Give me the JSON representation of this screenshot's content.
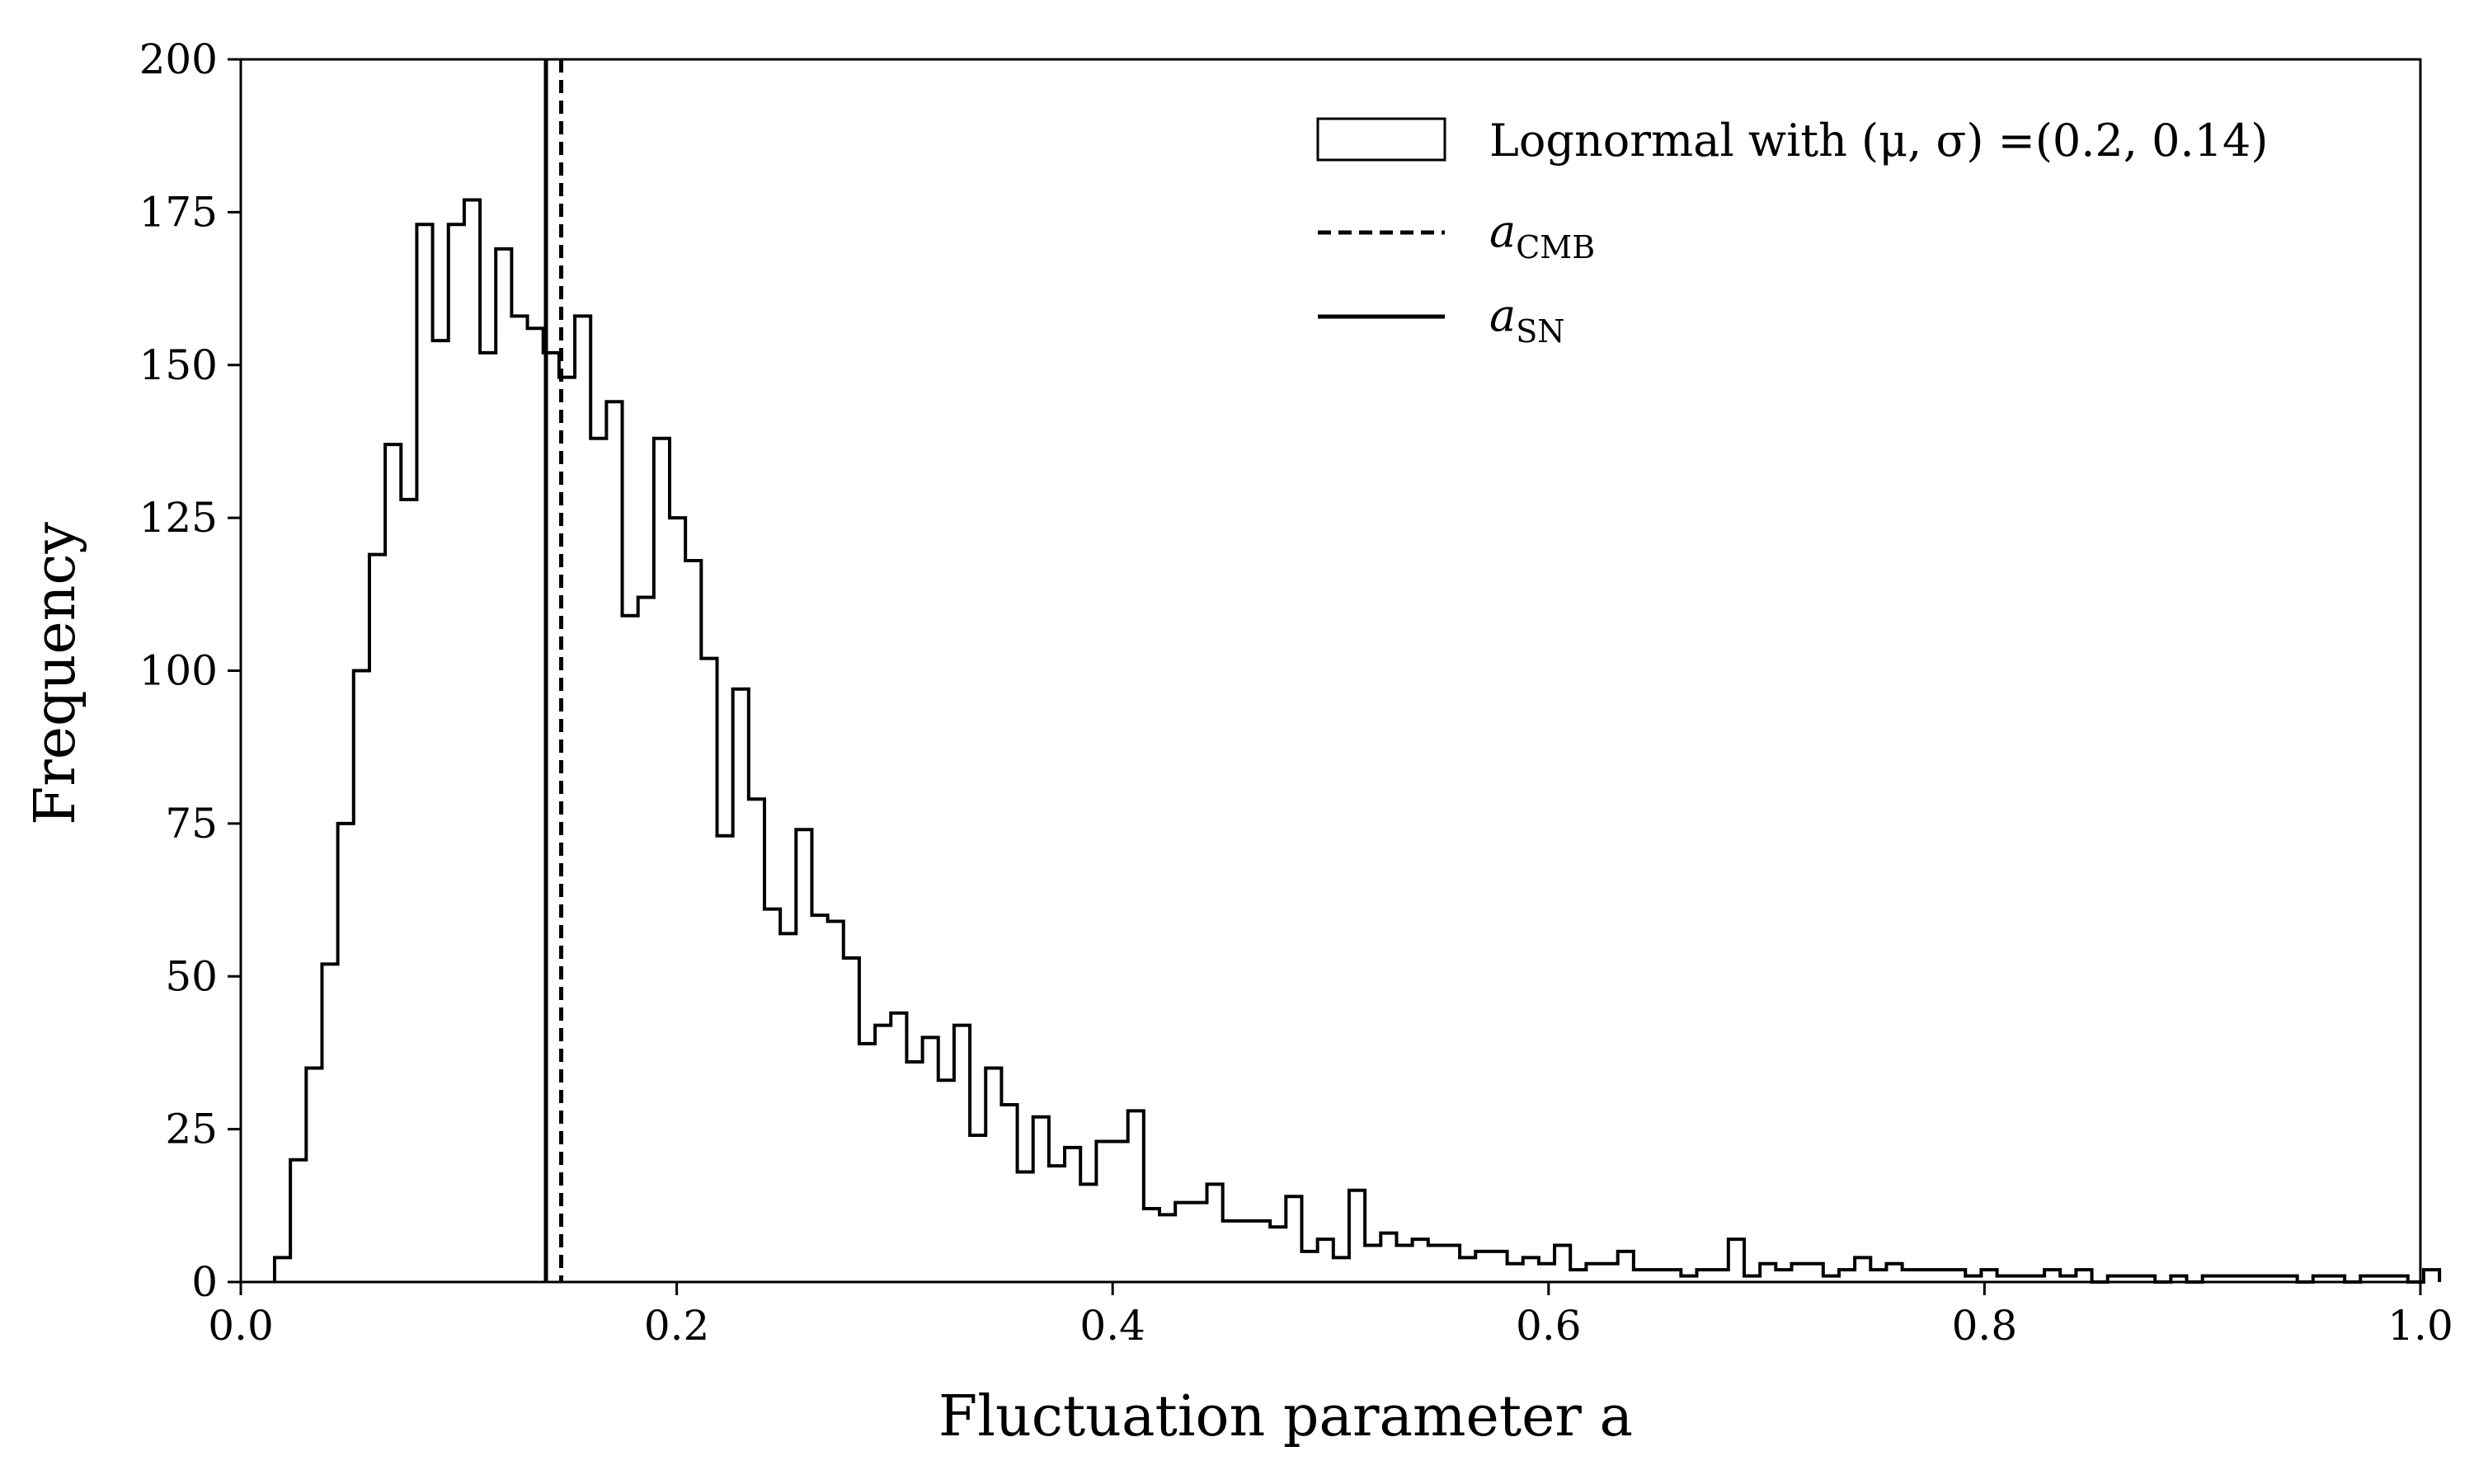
{
  "chart_data": {
    "type": "histogram",
    "title": "",
    "xlabel": "Fluctuation parameter a",
    "ylabel": "Frequency",
    "xlim": [
      0.0,
      1.0
    ],
    "ylim": [
      0,
      200
    ],
    "x_ticks": [
      "0.0",
      "0.2",
      "0.4",
      "0.6",
      "0.8",
      "1.0"
    ],
    "y_ticks": [
      "0",
      "25",
      "50",
      "75",
      "100",
      "125",
      "150",
      "175",
      "200"
    ],
    "grid": false,
    "legend_position": "top-right",
    "bin_start": 0.0155,
    "bin_width": 0.00725,
    "counts": [
      4,
      20,
      35,
      52,
      75,
      100,
      119,
      137,
      128,
      173,
      154,
      173,
      177,
      152,
      169,
      158,
      156,
      152,
      148,
      158,
      138,
      144,
      109,
      112,
      138,
      125,
      118,
      102,
      73,
      97,
      79,
      61,
      57,
      74,
      60,
      59,
      53,
      39,
      42,
      44,
      36,
      40,
      33,
      42,
      24,
      35,
      29,
      18,
      27,
      19,
      22,
      16,
      23,
      23,
      28,
      12,
      11,
      13,
      13,
      16,
      10,
      10,
      10,
      9,
      14,
      5,
      7,
      4,
      15,
      6,
      8,
      6,
      7,
      6,
      6,
      4,
      5,
      5,
      3,
      4,
      3,
      6,
      2,
      3,
      3,
      5,
      2,
      2,
      2,
      1,
      2,
      2,
      7,
      1,
      3,
      2,
      3,
      3,
      1,
      2,
      4,
      2,
      3,
      2,
      2,
      2,
      2,
      1,
      2,
      1,
      1,
      1,
      2,
      1,
      2,
      0,
      1,
      1,
      1,
      0,
      1,
      0,
      1,
      1,
      1,
      1,
      1,
      1,
      0,
      1,
      1,
      0,
      1,
      1,
      1,
      0,
      2
    ],
    "series": [
      {
        "name": "Lognormal with (μ, σ) =(0.2, 0.14)",
        "style": "histogram-step"
      },
      {
        "name": "a_CMB",
        "x": 0.147,
        "style": "dashed-vertical"
      },
      {
        "name": "a_SN",
        "x": 0.14,
        "style": "solid-vertical"
      }
    ],
    "legend": {
      "hist_label": "Lognormal with (μ, σ) =(0.2, 0.14)",
      "cmb_base": "a",
      "cmb_sub": "CMB",
      "sn_base": "a",
      "sn_sub": "SN"
    },
    "colors": {
      "line": "#000000",
      "background": "#ffffff"
    }
  }
}
